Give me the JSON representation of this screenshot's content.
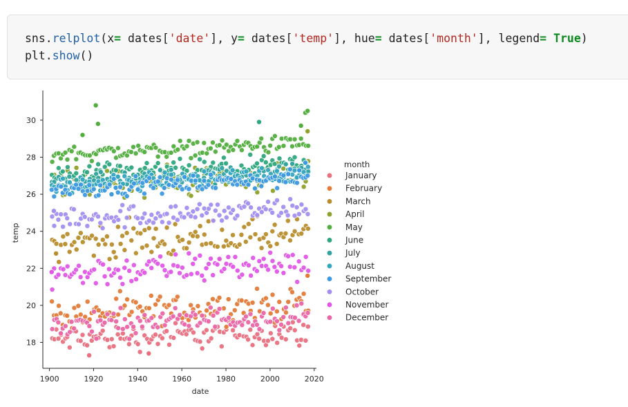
{
  "code": {
    "line1": [
      {
        "t": "sns.",
        "c": ""
      },
      {
        "t": "relplot",
        "c": "attr"
      },
      {
        "t": "(x",
        "c": ""
      },
      {
        "t": "=",
        "c": "op"
      },
      {
        "t": " dates[",
        "c": ""
      },
      {
        "t": "'date'",
        "c": "str"
      },
      {
        "t": "], y",
        "c": ""
      },
      {
        "t": "=",
        "c": "op"
      },
      {
        "t": " dates[",
        "c": ""
      },
      {
        "t": "'temp'",
        "c": "str"
      },
      {
        "t": "], hue",
        "c": ""
      },
      {
        "t": "=",
        "c": "op"
      },
      {
        "t": " dates[",
        "c": ""
      },
      {
        "t": "'month'",
        "c": "str"
      },
      {
        "t": "], legend",
        "c": ""
      },
      {
        "t": "=",
        "c": "op"
      },
      {
        "t": " ",
        "c": ""
      },
      {
        "t": "True",
        "c": "kw"
      },
      {
        "t": ")",
        "c": ""
      }
    ],
    "line2": [
      {
        "t": "plt.",
        "c": ""
      },
      {
        "t": "show",
        "c": "attr"
      },
      {
        "t": "()",
        "c": ""
      }
    ]
  },
  "chart_data": {
    "type": "scatter",
    "xlabel": "date",
    "ylabel": "temp",
    "xlim": [
      1897,
      2021
    ],
    "ylim": [
      16.6,
      31.6
    ],
    "xticks": [
      1900,
      1920,
      1940,
      1960,
      1980,
      2000,
      2020
    ],
    "yticks": [
      18,
      20,
      22,
      24,
      26,
      28,
      30
    ],
    "grid": false,
    "legend": {
      "title": "month",
      "placement": "right"
    },
    "point_years": [
      1901,
      2017
    ],
    "series": [
      {
        "name": "January",
        "color": "#e8707f",
        "y_band": [
          17.3,
          19.4
        ],
        "y_trend": 0.4,
        "highlights": [
          {
            "x": 1918,
            "y": 17.3
          },
          {
            "x": 1945,
            "y": 17.4
          },
          {
            "x": 2015,
            "y": 19.5
          }
        ]
      },
      {
        "name": "February",
        "color": "#e27b38",
        "y_band": [
          18.6,
          21.0
        ],
        "y_trend": 0.6,
        "highlights": [
          {
            "x": 2017,
            "y": 21.6
          }
        ]
      },
      {
        "name": "March",
        "color": "#b88d2c",
        "y_band": [
          22.2,
          25.0
        ],
        "y_trend": 0.4,
        "highlights": [
          {
            "x": 1903,
            "y": 22.8
          }
        ]
      },
      {
        "name": "April",
        "color": "#8fa12b",
        "y_band": [
          25.5,
          28.0
        ],
        "y_trend": 0.4,
        "highlights": [
          {
            "x": 2017,
            "y": 29.4
          }
        ]
      },
      {
        "name": "May",
        "color": "#52ae3e",
        "y_band": [
          27.8,
          29.1
        ],
        "y_trend": 0.6,
        "highlights": [
          {
            "x": 1921,
            "y": 30.8
          },
          {
            "x": 1922,
            "y": 29.8
          },
          {
            "x": 1915,
            "y": 29.2
          },
          {
            "x": 2016,
            "y": 30.4
          },
          {
            "x": 2017,
            "y": 30.5
          },
          {
            "x": 2014,
            "y": 29.7
          }
        ]
      },
      {
        "name": "June",
        "color": "#2ea67e",
        "y_band": [
          26.5,
          28.1
        ],
        "y_trend": 0.6,
        "highlights": [
          {
            "x": 1995,
            "y": 29.9
          }
        ]
      },
      {
        "name": "July",
        "color": "#31a3a2",
        "y_band": [
          26.2,
          27.6
        ],
        "y_trend": 0.6,
        "highlights": []
      },
      {
        "name": "August",
        "color": "#34a6c0",
        "y_band": [
          26.1,
          27.5
        ],
        "y_trend": 0.7,
        "highlights": []
      },
      {
        "name": "September",
        "color": "#3d99e2",
        "y_band": [
          25.9,
          27.2
        ],
        "y_trend": 0.6,
        "highlights": [
          {
            "x": 2016,
            "y": 27.7
          }
        ]
      },
      {
        "name": "October",
        "color": "#a38ef0",
        "y_band": [
          24.0,
          25.9
        ],
        "y_trend": 0.5,
        "highlights": [
          {
            "x": 1902,
            "y": 25.1
          }
        ]
      },
      {
        "name": "November",
        "color": "#e057e6",
        "y_band": [
          20.8,
          23.2
        ],
        "y_trend": 0.6,
        "highlights": [
          {
            "x": 1901,
            "y": 21.8
          }
        ]
      },
      {
        "name": "December",
        "color": "#ea66a7",
        "y_band": [
          18.2,
          20.2
        ],
        "y_trend": 0.6,
        "highlights": []
      }
    ]
  }
}
